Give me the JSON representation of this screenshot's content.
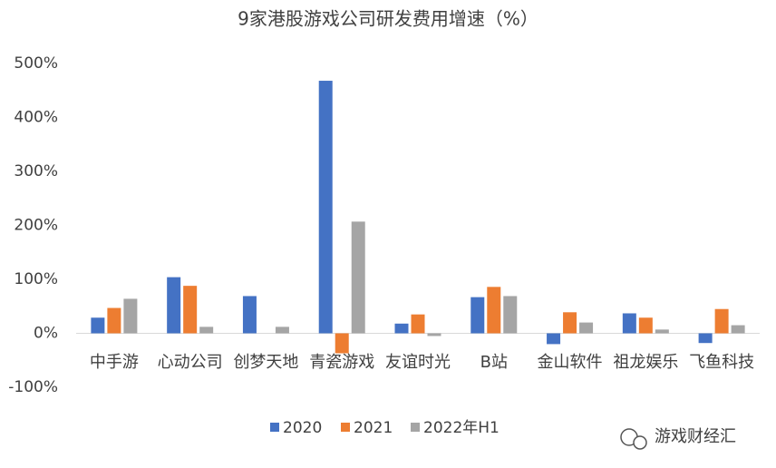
{
  "chart_data": {
    "type": "bar",
    "title": "9家港股游戏公司研发费用增速（%）",
    "categories": [
      "中手游",
      "心动公司",
      "创梦天地",
      "青瓷游戏",
      "友谊时光",
      "B站",
      "金山软件",
      "祖龙娱乐",
      "飞鱼科技"
    ],
    "series": [
      {
        "name": "2020",
        "color": "#4472c4",
        "values": [
          29,
          104,
          69,
          468,
          18,
          67,
          -20,
          37,
          -18
        ]
      },
      {
        "name": "2021",
        "color": "#ed7d31",
        "values": [
          47,
          88,
          null,
          -37,
          35,
          86,
          39,
          29,
          45
        ]
      },
      {
        "name": "2022年H1",
        "color": "#a5a5a5",
        "values": [
          64,
          12,
          12,
          207,
          -5,
          69,
          20,
          7,
          15
        ]
      }
    ],
    "ylim": [
      -100,
      500
    ],
    "yticks": [
      {
        "value": -100,
        "label": "-100%"
      },
      {
        "value": 0,
        "label": "0%"
      },
      {
        "value": 100,
        "label": "100%"
      },
      {
        "value": 200,
        "label": "200%"
      },
      {
        "value": 300,
        "label": "300%"
      },
      {
        "value": 400,
        "label": "400%"
      },
      {
        "value": 500,
        "label": "500%"
      }
    ],
    "grid": false,
    "legend": "bottom",
    "watermark": "游戏财经汇"
  }
}
